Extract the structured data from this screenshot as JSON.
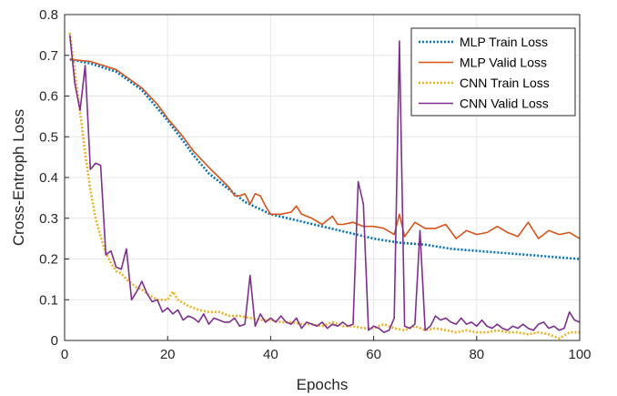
{
  "chart_data": {
    "type": "line",
    "title": "",
    "xlabel": "Epochs",
    "ylabel": "Cross-Entroph Loss",
    "xlim": [
      0,
      100
    ],
    "ylim": [
      0,
      0.8
    ],
    "xticks": [
      0,
      20,
      40,
      60,
      80,
      100
    ],
    "yticks": [
      0,
      0.1,
      0.2,
      0.3,
      0.4,
      0.5,
      0.6,
      0.7,
      0.8
    ],
    "xtick_labels": [
      "0",
      "20",
      "40",
      "60",
      "80",
      "100"
    ],
    "ytick_labels": [
      "0",
      "0.1",
      "0.2",
      "0.3",
      "0.4",
      "0.5",
      "0.6",
      "0.7",
      "0.8"
    ],
    "grid": true,
    "legend_position": "top-right",
    "series": [
      {
        "name": "MLP Train Loss",
        "color": "#0072BD",
        "style": "dotted",
        "x": [
          1,
          5,
          10,
          15,
          18,
          20,
          23,
          25,
          28,
          30,
          35,
          40,
          45,
          50,
          55,
          60,
          65,
          70,
          75,
          80,
          85,
          90,
          95,
          100
        ],
        "y": [
          0.69,
          0.68,
          0.66,
          0.615,
          0.57,
          0.54,
          0.49,
          0.455,
          0.41,
          0.39,
          0.34,
          0.31,
          0.295,
          0.28,
          0.265,
          0.25,
          0.24,
          0.235,
          0.225,
          0.22,
          0.215,
          0.21,
          0.205,
          0.2
        ]
      },
      {
        "name": "MLP Valid Loss",
        "color": "#D95319",
        "style": "solid",
        "x": [
          1,
          5,
          10,
          15,
          18,
          20,
          23,
          25,
          28,
          30,
          32,
          33,
          34,
          35,
          36,
          37,
          38,
          39,
          40,
          42,
          44,
          45,
          46,
          48,
          50,
          52,
          53,
          54,
          56,
          58,
          60,
          62,
          64,
          65,
          66,
          68,
          70,
          72,
          74,
          76,
          78,
          80,
          82,
          84,
          86,
          88,
          90,
          92,
          94,
          96,
          98,
          100
        ],
        "y": [
          0.69,
          0.685,
          0.665,
          0.62,
          0.58,
          0.545,
          0.5,
          0.465,
          0.425,
          0.4,
          0.375,
          0.355,
          0.355,
          0.36,
          0.335,
          0.36,
          0.355,
          0.33,
          0.31,
          0.31,
          0.315,
          0.33,
          0.31,
          0.3,
          0.285,
          0.305,
          0.285,
          0.285,
          0.29,
          0.28,
          0.28,
          0.275,
          0.26,
          0.31,
          0.255,
          0.29,
          0.275,
          0.275,
          0.285,
          0.25,
          0.27,
          0.26,
          0.265,
          0.28,
          0.265,
          0.255,
          0.29,
          0.25,
          0.27,
          0.26,
          0.265,
          0.25
        ]
      },
      {
        "name": "CNN Train Loss",
        "color": "#EDB120",
        "style": "dotted",
        "x": [
          1,
          2,
          3,
          4,
          5,
          6,
          7,
          8,
          9,
          10,
          11,
          12,
          13,
          14,
          15,
          16,
          18,
          20,
          21,
          22,
          24,
          26,
          28,
          30,
          32,
          34,
          36,
          38,
          40,
          42,
          44,
          46,
          48,
          50,
          52,
          54,
          56,
          58,
          60,
          62,
          64,
          66,
          68,
          70,
          72,
          74,
          76,
          78,
          80,
          82,
          84,
          86,
          88,
          90,
          92,
          94,
          96,
          98,
          100
        ],
        "y": [
          0.755,
          0.66,
          0.56,
          0.46,
          0.37,
          0.3,
          0.255,
          0.215,
          0.19,
          0.17,
          0.165,
          0.15,
          0.14,
          0.13,
          0.125,
          0.115,
          0.1,
          0.1,
          0.12,
          0.1,
          0.085,
          0.075,
          0.07,
          0.07,
          0.06,
          0.06,
          0.055,
          0.05,
          0.05,
          0.045,
          0.045,
          0.04,
          0.04,
          0.035,
          0.045,
          0.035,
          0.035,
          0.03,
          0.03,
          0.04,
          0.03,
          0.025,
          0.035,
          0.025,
          0.03,
          0.025,
          0.02,
          0.025,
          0.02,
          0.02,
          0.025,
          0.02,
          0.02,
          0.015,
          0.02,
          0.015,
          0.005,
          0.02,
          0.02
        ]
      },
      {
        "name": "CNN Valid Loss",
        "color": "#7E2F8E",
        "style": "solid",
        "x": [
          1,
          2,
          3,
          4,
          5,
          6,
          7,
          8,
          9,
          10,
          11,
          12,
          13,
          14,
          15,
          16,
          17,
          18,
          19,
          20,
          21,
          22,
          23,
          24,
          25,
          26,
          27,
          28,
          29,
          30,
          31,
          32,
          33,
          34,
          35,
          36,
          37,
          38,
          39,
          40,
          41,
          42,
          43,
          44,
          45,
          46,
          47,
          48,
          49,
          50,
          51,
          52,
          53,
          54,
          55,
          56,
          57,
          58,
          59,
          60,
          61,
          62,
          63,
          64,
          65,
          66,
          67,
          68,
          69,
          70,
          71,
          72,
          73,
          74,
          75,
          76,
          77,
          78,
          79,
          80,
          81,
          82,
          83,
          84,
          85,
          86,
          87,
          88,
          89,
          90,
          91,
          92,
          93,
          94,
          95,
          96,
          97,
          98,
          99,
          100
        ],
        "y": [
          0.75,
          0.63,
          0.565,
          0.675,
          0.42,
          0.435,
          0.43,
          0.21,
          0.22,
          0.18,
          0.175,
          0.225,
          0.1,
          0.12,
          0.145,
          0.115,
          0.095,
          0.1,
          0.07,
          0.08,
          0.065,
          0.075,
          0.05,
          0.06,
          0.055,
          0.045,
          0.065,
          0.04,
          0.055,
          0.05,
          0.045,
          0.045,
          0.055,
          0.035,
          0.04,
          0.16,
          0.035,
          0.065,
          0.045,
          0.055,
          0.045,
          0.06,
          0.045,
          0.04,
          0.055,
          0.03,
          0.045,
          0.04,
          0.035,
          0.045,
          0.03,
          0.04,
          0.035,
          0.045,
          0.035,
          0.04,
          0.39,
          0.335,
          0.025,
          0.035,
          0.03,
          0.02,
          0.025,
          0.055,
          0.735,
          0.035,
          0.03,
          0.04,
          0.27,
          0.025,
          0.035,
          0.06,
          0.05,
          0.055,
          0.045,
          0.04,
          0.055,
          0.04,
          0.045,
          0.035,
          0.05,
          0.035,
          0.03,
          0.04,
          0.03,
          0.025,
          0.035,
          0.03,
          0.04,
          0.03,
          0.025,
          0.04,
          0.045,
          0.03,
          0.035,
          0.025,
          0.03,
          0.07,
          0.05,
          0.045
        ]
      }
    ]
  }
}
